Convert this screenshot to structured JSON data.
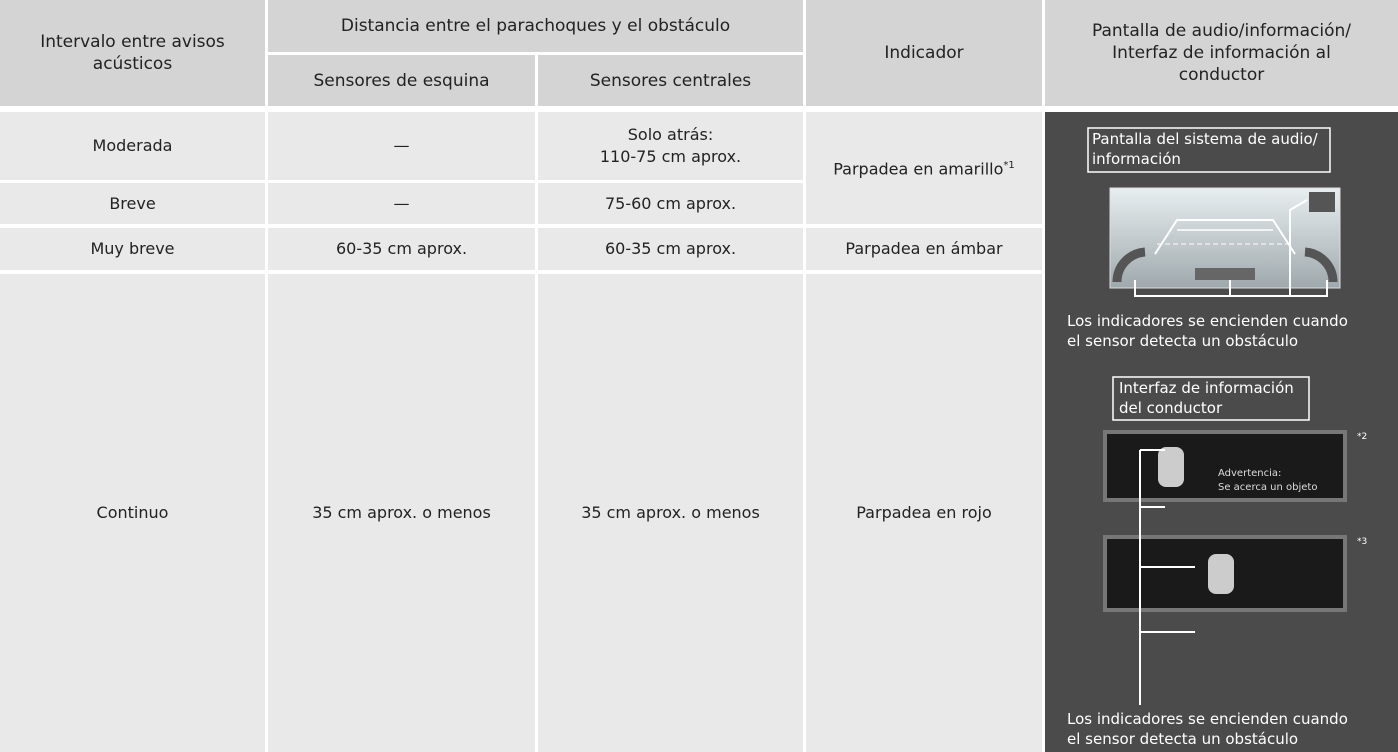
{
  "table": {
    "header": {
      "interval": "Intervalo entre avisos acústicos",
      "distance": "Distancia entre el parachoques y el obstáculo",
      "corner": "Sensores de esquina",
      "center": "Sensores centrales",
      "indicator": "Indicador",
      "display": [
        "Pantalla de audio/información/",
        "Interfaz de información al",
        "conductor"
      ]
    },
    "rows": [
      {
        "interval": "Moderada",
        "corner": "—",
        "center": [
          "Solo atrás:",
          "110-75 cm aprox."
        ]
      },
      {
        "interval": "Breve",
        "corner": "—",
        "center": [
          "75-60 cm aprox."
        ]
      },
      {
        "interval": "Muy breve",
        "corner": "60-35 cm aprox.",
        "center": [
          "60-35 cm aprox."
        ]
      },
      {
        "interval": "Continuo",
        "corner": "35 cm aprox. o menos",
        "center": [
          "35 cm aprox. o menos"
        ]
      }
    ],
    "indicators": [
      {
        "text": "Parpadea en amarillo",
        "note": "*1"
      },
      {
        "text": "Parpadea en ámbar"
      },
      {
        "text": "Parpadea en rojo"
      }
    ],
    "figure": {
      "audio_label": [
        "Pantalla del sistema de audio/",
        "información"
      ],
      "caption_1": [
        "Los indicadores se encienden cuando",
        "el sensor detecta un obstáculo"
      ],
      "driver_label": [
        "Interfaz de información",
        "del conductor"
      ],
      "note_2": "*2",
      "warning": [
        "Advertencia:",
        "Se acerca un objeto"
      ],
      "note_3": "*3",
      "caption_2": [
        "Los indicadores se encienden cuando",
        "el sensor detecta un obstáculo"
      ]
    }
  }
}
